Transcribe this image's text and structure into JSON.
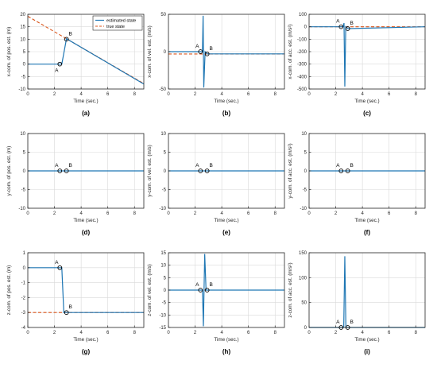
{
  "colors": {
    "estimated": "#1f77b4",
    "true": "#d95319",
    "axis": "#262626",
    "grid": "#d9d9d9"
  },
  "legend": {
    "estimated_label": "estimated state",
    "true_label": "true state",
    "placement": "top-right of panel (a)"
  },
  "chart_data": [
    {
      "panel": "(a)",
      "type": "line",
      "xlabel": "Time (sec.)",
      "ylabel": "x-com. of pos. est. (m)",
      "xlim": [
        0,
        8.7
      ],
      "ylim": [
        -10,
        20
      ],
      "xticks": [
        0,
        2,
        4,
        6,
        8
      ],
      "yticks": [
        -10,
        -5,
        0,
        5,
        10,
        15,
        20
      ],
      "grid": true,
      "legend": true,
      "series": [
        {
          "name": "estimated state",
          "role": "estimated",
          "x": [
            0,
            2.4,
            2.55,
            2.9,
            8.7
          ],
          "y": [
            0,
            0,
            0,
            10.2,
            -8
          ]
        },
        {
          "name": "true state",
          "role": "true",
          "x": [
            0,
            8.7
          ],
          "y": [
            19.2,
            -7.8
          ]
        }
      ],
      "markers": [
        {
          "label": "A",
          "x": 2.4,
          "y": 0
        },
        {
          "label": "B",
          "x": 2.9,
          "y": 10
        }
      ]
    },
    {
      "panel": "(b)",
      "type": "line",
      "xlabel": "Time (sec.)",
      "ylabel": "x-com. of vel. est. (m/s)",
      "xlim": [
        0,
        8.7
      ],
      "ylim": [
        -50,
        50
      ],
      "xticks": [
        0,
        2,
        4,
        6,
        8
      ],
      "yticks": [
        -50,
        0,
        50
      ],
      "grid": true,
      "series": [
        {
          "role": "estimated",
          "x": [
            0,
            2.4,
            2.55,
            2.6,
            2.65,
            2.75,
            2.9,
            8.7
          ],
          "y": [
            0,
            0,
            0,
            48,
            -48,
            0,
            -3,
            -3
          ]
        },
        {
          "role": "true",
          "x": [
            0,
            8.7
          ],
          "y": [
            -3.1,
            -3.1
          ]
        }
      ],
      "markers": [
        {
          "label": "A",
          "x": 2.4,
          "y": 0
        },
        {
          "label": "B",
          "x": 2.9,
          "y": -3
        }
      ]
    },
    {
      "panel": "(c)",
      "type": "line",
      "xlabel": "Time (sec.)",
      "ylabel": "x-com. of acc. est. (m/s²)",
      "xlim": [
        0,
        8.7
      ],
      "ylim": [
        -500,
        100
      ],
      "xticks": [
        0,
        2,
        4,
        6,
        8
      ],
      "yticks": [
        -500,
        -400,
        -300,
        -200,
        -100,
        0,
        100
      ],
      "grid": true,
      "series": [
        {
          "role": "estimated",
          "x": [
            0,
            2.4,
            2.55,
            2.62,
            2.68,
            2.75,
            2.9,
            8.7
          ],
          "y": [
            0,
            0,
            0,
            30,
            -480,
            0,
            -15,
            0
          ]
        },
        {
          "role": "true",
          "x": [
            0,
            8.7
          ],
          "y": [
            0,
            0
          ]
        }
      ],
      "markers": [
        {
          "label": "A",
          "x": 2.4,
          "y": 0
        },
        {
          "label": "B",
          "x": 2.9,
          "y": -15
        }
      ]
    },
    {
      "panel": "(d)",
      "type": "line",
      "xlabel": "Time (sec.)",
      "ylabel": "y-com. of pos. est. (m)",
      "xlim": [
        0,
        8.7
      ],
      "ylim": [
        -10,
        10
      ],
      "xticks": [
        0,
        2,
        4,
        6,
        8
      ],
      "yticks": [
        -10,
        -5,
        0,
        5,
        10
      ],
      "grid": true,
      "series": [
        {
          "role": "estimated",
          "x": [
            0,
            8.7
          ],
          "y": [
            0,
            0
          ]
        },
        {
          "role": "true",
          "x": [
            0,
            8.7
          ],
          "y": [
            0,
            0
          ]
        }
      ],
      "markers": [
        {
          "label": "A",
          "x": 2.4,
          "y": 0
        },
        {
          "label": "B",
          "x": 2.9,
          "y": 0
        }
      ]
    },
    {
      "panel": "(e)",
      "type": "line",
      "xlabel": "Time (sec.)",
      "ylabel": "y-com. of vel. est. (m/s)",
      "xlim": [
        0,
        8.7
      ],
      "ylim": [
        -10,
        10
      ],
      "xticks": [
        0,
        2,
        4,
        6,
        8
      ],
      "yticks": [
        -10,
        -5,
        0,
        5,
        10
      ],
      "grid": true,
      "series": [
        {
          "role": "estimated",
          "x": [
            0,
            8.7
          ],
          "y": [
            0,
            0
          ]
        },
        {
          "role": "true",
          "x": [
            0,
            8.7
          ],
          "y": [
            0,
            0
          ]
        }
      ],
      "markers": [
        {
          "label": "A",
          "x": 2.4,
          "y": 0
        },
        {
          "label": "B",
          "x": 2.9,
          "y": 0
        }
      ]
    },
    {
      "panel": "(f)",
      "type": "line",
      "xlabel": "Time (sec.)",
      "ylabel": "y-com. of acc. est. (m/s²)",
      "xlim": [
        0,
        8.7
      ],
      "ylim": [
        -10,
        10
      ],
      "xticks": [
        0,
        2,
        4,
        6,
        8
      ],
      "yticks": [
        -10,
        -5,
        0,
        5,
        10
      ],
      "grid": true,
      "series": [
        {
          "role": "estimated",
          "x": [
            0,
            8.7
          ],
          "y": [
            0,
            0
          ]
        },
        {
          "role": "true",
          "x": [
            0,
            8.7
          ],
          "y": [
            0,
            0
          ]
        }
      ],
      "markers": [
        {
          "label": "A",
          "x": 2.4,
          "y": 0
        },
        {
          "label": "B",
          "x": 2.9,
          "y": 0
        }
      ]
    },
    {
      "panel": "(g)",
      "type": "line",
      "xlabel": "Time (sec.)",
      "ylabel": "z-com. of pos. est. (m)",
      "xlim": [
        0,
        8.7
      ],
      "ylim": [
        -4,
        1
      ],
      "xticks": [
        0,
        2,
        4,
        6,
        8
      ],
      "yticks": [
        -4,
        -3,
        -2,
        -1,
        0,
        1
      ],
      "grid": true,
      "series": [
        {
          "role": "estimated",
          "x": [
            0,
            2.4,
            2.55,
            2.7,
            2.9,
            8.7
          ],
          "y": [
            0,
            0,
            0,
            -3,
            -3,
            -3
          ]
        },
        {
          "role": "true",
          "x": [
            0,
            8.7
          ],
          "y": [
            -3,
            -3
          ]
        }
      ],
      "markers": [
        {
          "label": "A",
          "x": 2.4,
          "y": 0
        },
        {
          "label": "B",
          "x": 2.9,
          "y": -3
        }
      ]
    },
    {
      "panel": "(h)",
      "type": "line",
      "xlabel": "Time (sec.)",
      "ylabel": "z-com. of vel. est. (m/s)",
      "xlim": [
        0,
        8.7
      ],
      "ylim": [
        -15,
        15
      ],
      "xticks": [
        0,
        2,
        4,
        6,
        8
      ],
      "yticks": [
        -15,
        -10,
        -5,
        0,
        5,
        10,
        15
      ],
      "grid": true,
      "series": [
        {
          "role": "estimated",
          "x": [
            0,
            2.4,
            2.55,
            2.62,
            2.72,
            2.82,
            2.9,
            8.7
          ],
          "y": [
            0,
            0,
            0,
            -14.5,
            14.5,
            0,
            0,
            0
          ]
        },
        {
          "role": "true",
          "x": [
            0,
            8.7
          ],
          "y": [
            0,
            0
          ]
        }
      ],
      "markers": [
        {
          "label": "A",
          "x": 2.4,
          "y": 0
        },
        {
          "label": "B",
          "x": 2.9,
          "y": 0
        }
      ]
    },
    {
      "panel": "(i)",
      "type": "line",
      "xlabel": "Time (sec.)",
      "ylabel": "z-com. of acc. est. (m/s²)",
      "xlim": [
        0,
        8.7
      ],
      "ylim": [
        0,
        150
      ],
      "xticks": [
        0,
        2,
        4,
        6,
        8
      ],
      "yticks": [
        0,
        50,
        100,
        150
      ],
      "grid": true,
      "series": [
        {
          "role": "estimated",
          "x": [
            0,
            2.4,
            2.6,
            2.68,
            2.76,
            2.9,
            8.7
          ],
          "y": [
            0,
            0,
            0,
            143,
            0,
            0,
            0
          ]
        },
        {
          "role": "true",
          "x": [
            0,
            8.7
          ],
          "y": [
            0,
            0
          ]
        }
      ],
      "markers": [
        {
          "label": "A",
          "x": 2.4,
          "y": 0
        },
        {
          "label": "B",
          "x": 2.9,
          "y": 0
        }
      ]
    }
  ]
}
